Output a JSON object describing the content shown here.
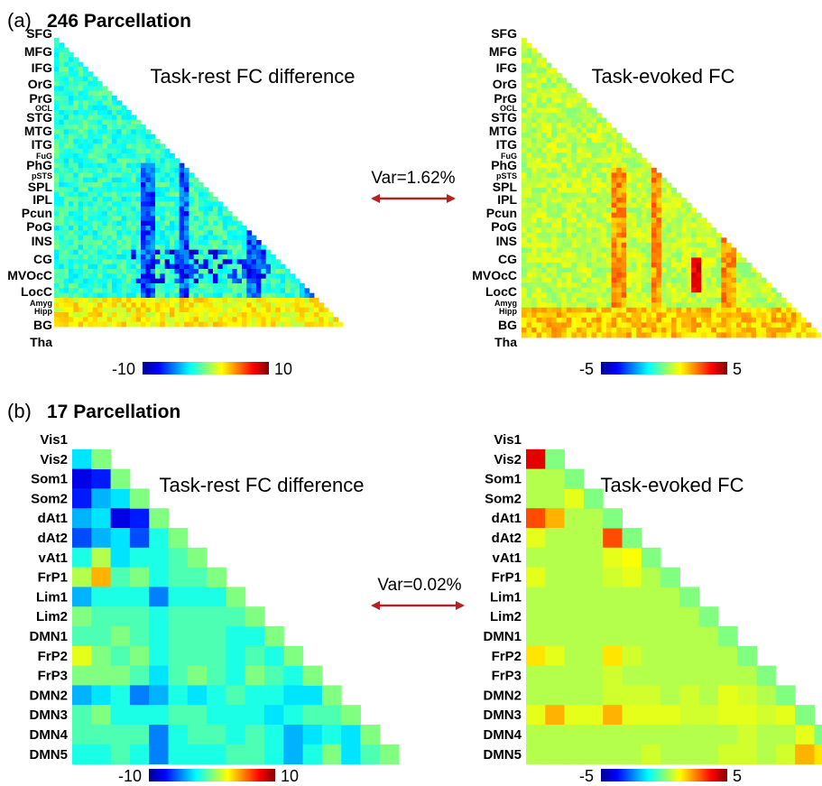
{
  "panels": {
    "a": {
      "label": "(a)",
      "title": "246 Parcellation"
    },
    "b": {
      "label": "(b)",
      "title": "17 Parcellation"
    }
  },
  "annotations": {
    "var_a": "Var=1.62%",
    "var_b": "Var=0.02%",
    "arrow_color": "#b22222"
  },
  "colormap": "jet",
  "chart_data": [
    {
      "type": "heatmap",
      "title": "Task-rest FC difference",
      "panel": "a",
      "shape": "lower-triangle",
      "rows": [
        "SFG",
        "MFG",
        "IFG",
        "OrG",
        "PrG",
        "OCL",
        "STG",
        "MTG",
        "ITG",
        "FuG",
        "PhG",
        "pSTS",
        "SPL",
        "IPL",
        "Pcun",
        "PoG",
        "INS",
        "CG",
        "MVOcC",
        "LocC",
        "Amyg",
        "Hipp",
        "BG",
        "Tha"
      ],
      "n_regions": 246,
      "colorbar": {
        "min": -10,
        "max": 10,
        "min_label": "-10",
        "max_label": "10"
      }
    },
    {
      "type": "heatmap",
      "title": "Task-evoked FC",
      "panel": "a",
      "shape": "lower-triangle",
      "rows": [
        "SFG",
        "MFG",
        "IFG",
        "OrG",
        "PrG",
        "OCL",
        "STG",
        "MTG",
        "ITG",
        "FuG",
        "PhG",
        "pSTS",
        "SPL",
        "IPL",
        "Pcun",
        "PoG",
        "INS",
        "CG",
        "MVOcC",
        "LocC",
        "Amyg",
        "Hipp",
        "BG",
        "Tha"
      ],
      "n_regions": 246,
      "colorbar": {
        "min": -5,
        "max": 5,
        "min_label": "-5",
        "max_label": "5"
      }
    },
    {
      "type": "heatmap",
      "title": "Task-rest FC difference",
      "panel": "b",
      "shape": "lower-triangle",
      "rows": [
        "Vis1",
        "Vis2",
        "Som1",
        "Som2",
        "dAt1",
        "dAt2",
        "vAt1",
        "FrP1",
        "Lim1",
        "Lim2",
        "DMN1",
        "FrP2",
        "FrP3",
        "DMN2",
        "DMN3",
        "DMN4",
        "DMN5"
      ],
      "values": [
        [],
        [
          -3
        ],
        [
          -8,
          -7
        ],
        [
          -7,
          -4,
          -3
        ],
        [
          -4,
          -3,
          -8,
          -7
        ],
        [
          -6,
          -4,
          -3,
          -6,
          -2
        ],
        [
          -2,
          1,
          -3,
          -2,
          -2,
          -1
        ],
        [
          1,
          4,
          -1,
          0,
          -2,
          -1,
          -1
        ],
        [
          -4,
          -2,
          -2,
          -2,
          -5,
          -2,
          -2,
          -2
        ],
        [
          0,
          -1,
          -1,
          -1,
          -2,
          -1,
          -1,
          -1,
          -1
        ],
        [
          -1,
          -1,
          0,
          -1,
          -2,
          -1,
          -1,
          -1,
          -2,
          -2
        ],
        [
          2,
          0,
          -1,
          0,
          -2,
          -1,
          -1,
          -1,
          -2,
          -1,
          -2
        ],
        [
          0,
          0,
          0,
          -1,
          -3,
          -1,
          0,
          -1,
          -2,
          0,
          -1,
          -2
        ],
        [
          -4,
          -3,
          -2,
          -5,
          -4,
          -2,
          -3,
          -2,
          -1,
          -2,
          -2,
          -3,
          -3
        ],
        [
          -1,
          0,
          -2,
          -2,
          -2,
          -1,
          -1,
          -2,
          -2,
          -2,
          -3,
          -2,
          -1,
          -1
        ],
        [
          -1,
          -1,
          -1,
          -1,
          -5,
          -2,
          -1,
          -1,
          -2,
          -1,
          -2,
          -4,
          -3,
          -2,
          -3
        ],
        [
          -2,
          -2,
          -1,
          -2,
          -5,
          -2,
          -2,
          -2,
          -1,
          -1,
          -2,
          -4,
          -2,
          0,
          -3,
          -1
        ]
      ],
      "colorbar": {
        "min": -10,
        "max": 10,
        "min_label": "-10",
        "max_label": "10"
      }
    },
    {
      "type": "heatmap",
      "title": "Task-evoked FC",
      "panel": "b",
      "shape": "lower-triangle",
      "rows": [
        "Vis1",
        "Vis2",
        "Som1",
        "Som2",
        "dAt1",
        "dAt2",
        "vAt1",
        "FrP1",
        "Lim1",
        "Lim2",
        "DMN1",
        "FrP2",
        "FrP3",
        "DMN2",
        "DMN3",
        "DMN4",
        "DMN5"
      ],
      "values": [
        [],
        [
          4
        ],
        [
          0.5,
          0.5
        ],
        [
          0.5,
          0.5,
          1
        ],
        [
          3,
          2,
          0.5,
          0.5
        ],
        [
          1,
          0.5,
          0.5,
          0.5,
          3
        ],
        [
          0.5,
          0.5,
          0.5,
          0.5,
          1,
          1.2
        ],
        [
          1,
          0.5,
          0.5,
          0.5,
          0.8,
          1,
          0.5
        ],
        [
          0.5,
          0.5,
          0.5,
          0.5,
          0.5,
          0.5,
          0.5,
          0.5
        ],
        [
          0.5,
          0.5,
          0.5,
          0.5,
          0.5,
          0.5,
          0.5,
          0.5,
          0.5
        ],
        [
          0.5,
          0.5,
          0.5,
          0.5,
          0.5,
          0.5,
          0.5,
          0.5,
          0.5,
          0.5
        ],
        [
          1.5,
          1,
          0.5,
          0.5,
          1.5,
          0.8,
          0.5,
          0.5,
          0.5,
          0.5,
          0.5
        ],
        [
          0.5,
          0.5,
          0.5,
          0.5,
          0.8,
          0.5,
          0.5,
          0.5,
          0.5,
          0.5,
          0.5,
          0.5
        ],
        [
          0.5,
          0.5,
          0.5,
          0.5,
          0.8,
          0.8,
          0.8,
          0.5,
          0.8,
          0.5,
          1,
          0.8,
          0.5
        ],
        [
          1,
          2,
          1,
          1,
          2,
          1,
          1,
          1,
          0.8,
          0.8,
          1,
          1,
          0.8,
          1
        ],
        [
          0.5,
          0.5,
          0.5,
          0.5,
          0.5,
          0.5,
          0.5,
          0.5,
          0.5,
          0.5,
          0.5,
          0.8,
          0.5,
          0.5,
          1
        ],
        [
          0.5,
          0.5,
          0.5,
          0.5,
          0.5,
          0.5,
          0.8,
          0.5,
          0.5,
          0.5,
          0.8,
          0.8,
          0.5,
          0.8,
          2,
          1.5
        ]
      ],
      "colorbar": {
        "min": -5,
        "max": 5,
        "min_label": "-5",
        "max_label": "5"
      }
    }
  ]
}
